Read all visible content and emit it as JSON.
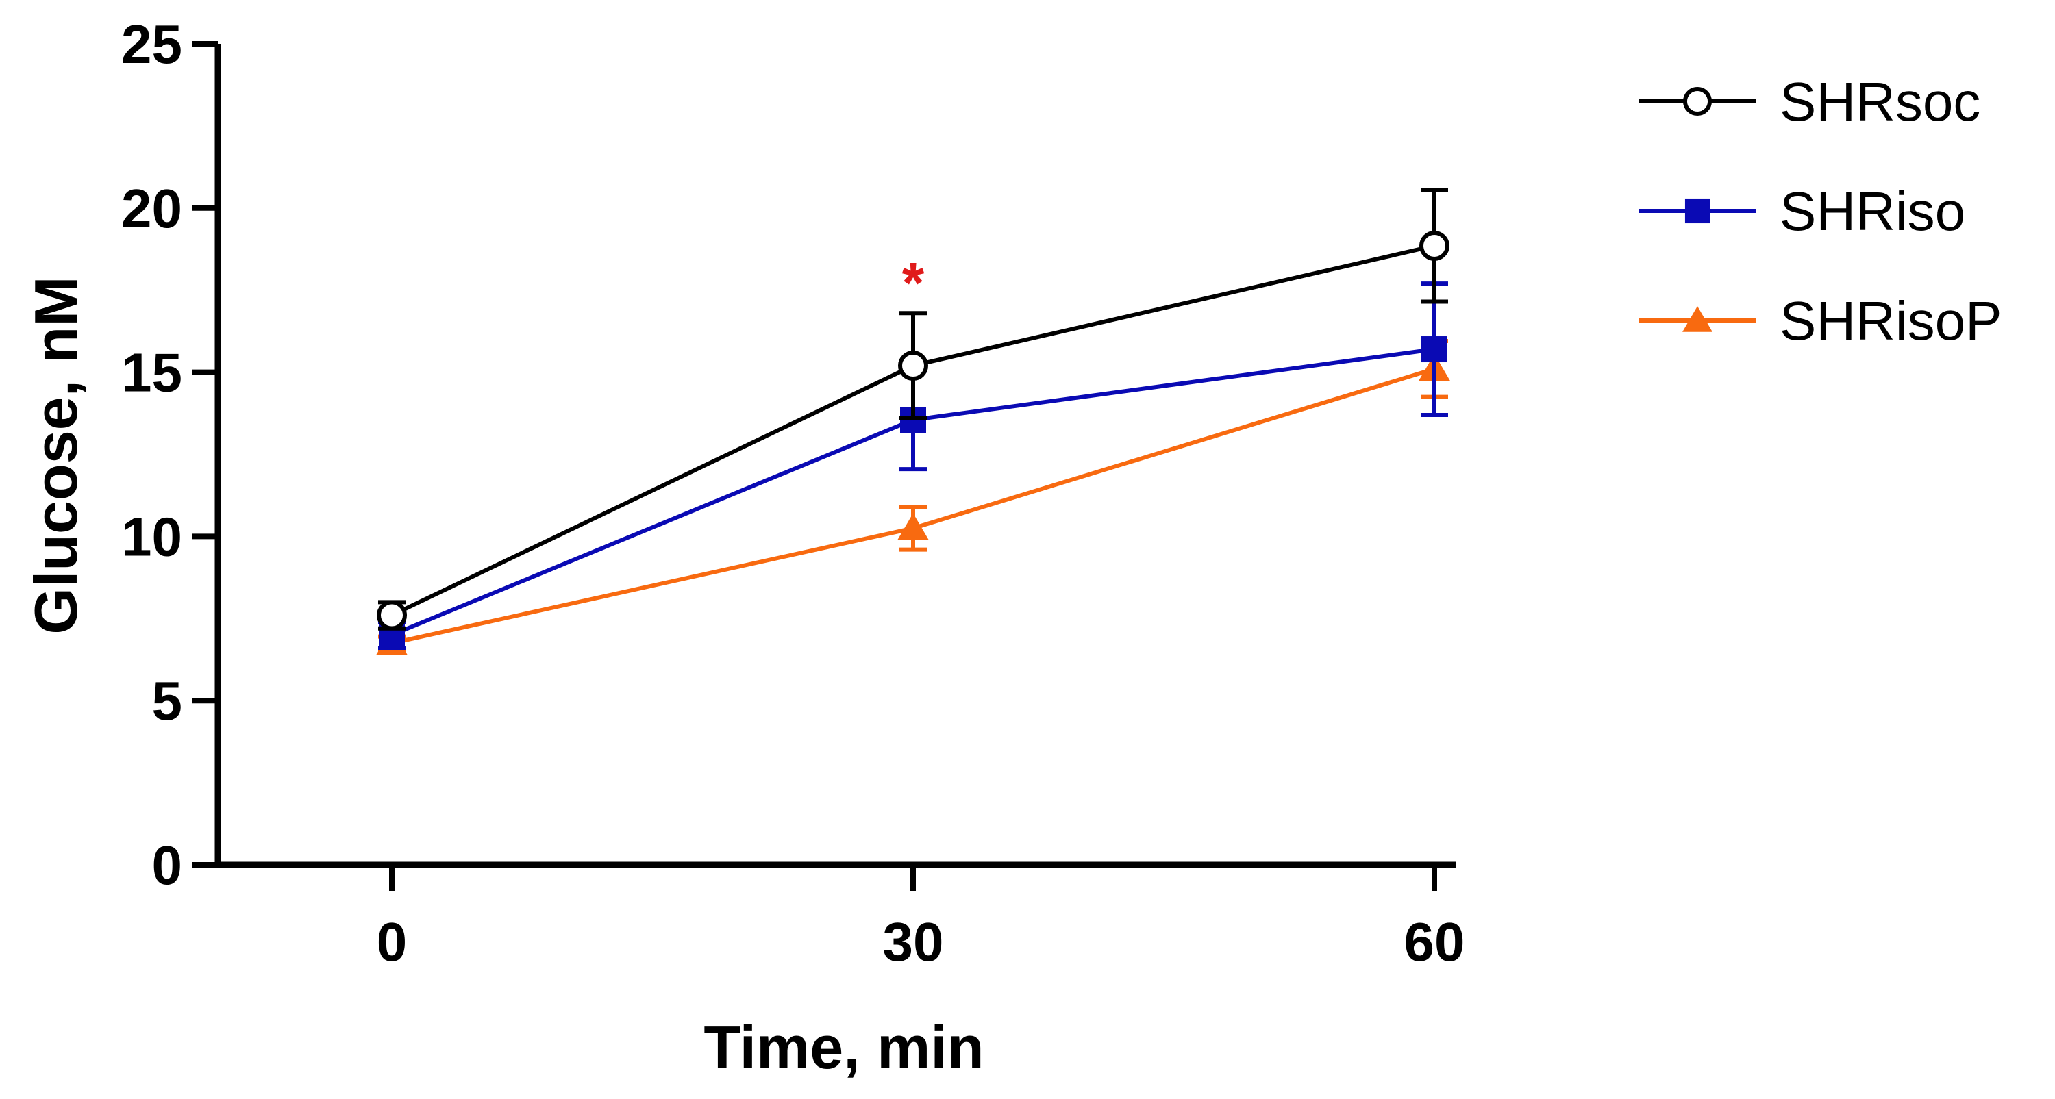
{
  "chart_data": {
    "type": "line",
    "title": "",
    "xlabel": "Time, min",
    "ylabel": "Glucose, nM",
    "x": [
      0,
      30,
      60
    ],
    "x_ticks": [
      "0",
      "30",
      "60"
    ],
    "y_ticks": [
      "0",
      "5",
      "10",
      "15",
      "20",
      "25"
    ],
    "ylim": [
      0,
      25
    ],
    "xlim": [
      -10,
      61
    ],
    "grid": false,
    "legend_position": "top-right",
    "series": [
      {
        "name": "SHRsoc",
        "color": "#000000",
        "marker": "open-circle",
        "values": [
          7.6,
          15.2,
          18.85
        ],
        "errors": [
          0.4,
          1.6,
          1.7
        ]
      },
      {
        "name": "SHRiso",
        "color": "#0a0ab4",
        "marker": "filled-square",
        "values": [
          7.0,
          13.55,
          15.7
        ],
        "errors": [
          0.4,
          1.5,
          2.0
        ]
      },
      {
        "name": "SHRisoP",
        "color": "#f86a10",
        "marker": "filled-triangle",
        "values": [
          6.75,
          10.25,
          15.1
        ],
        "errors": [
          0.2,
          0.65,
          0.85
        ]
      }
    ],
    "annotations": [
      {
        "text": "*",
        "x": 30,
        "y": 17.95,
        "color": "#e01b1b"
      }
    ]
  }
}
